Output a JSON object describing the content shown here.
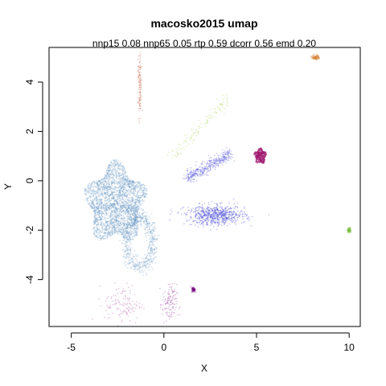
{
  "chart_data": {
    "type": "scatter",
    "title": "macosko2015 umap",
    "subtitle": "nnp15 0.08 nnp65 0.05 rtp 0.59 dcorr 0.56 emd 0.20",
    "xlabel": "X",
    "ylabel": "Y",
    "xlim": [
      -6.2,
      10.6
    ],
    "ylim": [
      -5.9,
      5.4
    ],
    "x_ticks": [
      -5,
      0,
      5,
      10
    ],
    "y_ticks": [
      -4,
      -2,
      0,
      2,
      4
    ],
    "x_tick_labels": [
      "-5",
      "0",
      "5",
      "10"
    ],
    "y_tick_labels": [
      "-4",
      "-2",
      "0",
      "2",
      "4"
    ],
    "grid": false,
    "legend": "none",
    "clusters": [
      {
        "color": "#5b8fbf",
        "center": [
          -2.6,
          -0.9
        ],
        "spread": [
          1.5,
          1.5
        ],
        "shape": "blob",
        "density": "very high"
      },
      {
        "color": "#5b8fbf",
        "center": [
          -1.3,
          -2.5
        ],
        "spread": [
          0.7,
          1.0
        ],
        "shape": "loop",
        "density": "high"
      },
      {
        "color": "#1f1fd0",
        "center": [
          2.8,
          -1.4
        ],
        "spread": [
          0.8,
          0.2
        ],
        "shape": "elongated",
        "density": "high"
      },
      {
        "color": "#3a3ad8",
        "center": [
          2.4,
          0.6
        ],
        "spread": [
          1.2,
          0.5
        ],
        "shape": "diagonal streak",
        "density": "medium"
      },
      {
        "color": "#9acd32",
        "center": [
          2.0,
          2.2
        ],
        "spread": [
          1.5,
          1.2
        ],
        "shape": "diagonal streaks",
        "density": "low"
      },
      {
        "color": "#a0106a",
        "center": [
          5.2,
          1.0
        ],
        "spread": [
          0.3,
          0.3
        ],
        "shape": "blob",
        "density": "high"
      },
      {
        "color": "#d98030",
        "center": [
          8.2,
          5.0
        ],
        "spread": [
          0.1,
          0.05
        ],
        "shape": "small",
        "density": "low"
      },
      {
        "color": "#7ac040",
        "center": [
          10.0,
          -2.0
        ],
        "spread": [
          0.05,
          0.05
        ],
        "shape": "small",
        "density": "low"
      },
      {
        "color": "#c05030",
        "center": [
          -1.3,
          3.8
        ],
        "spread": [
          0.05,
          0.7
        ],
        "shape": "vertical streak",
        "density": "low"
      },
      {
        "color": "#8a2090",
        "center": [
          0.3,
          -5.0
        ],
        "spread": [
          0.2,
          0.4
        ],
        "shape": "streak",
        "density": "low"
      },
      {
        "color": "#9a3090",
        "center": [
          -2.2,
          -5.0
        ],
        "spread": [
          0.5,
          0.4
        ],
        "shape": "scattered",
        "density": "low"
      },
      {
        "color": "#7a1080",
        "center": [
          1.6,
          -4.4
        ],
        "spread": [
          0.05,
          0.05
        ],
        "shape": "small",
        "density": "low"
      }
    ]
  }
}
